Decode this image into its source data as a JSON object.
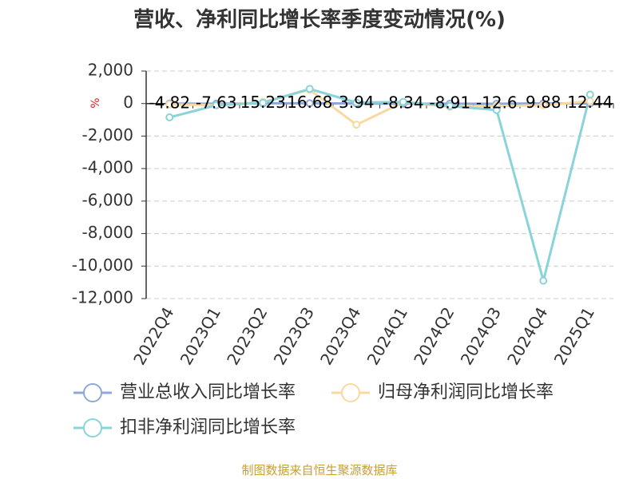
{
  "title": "营收、净利同比增长率季度变动情况(%)",
  "footer": "制图数据来自恒生聚源数据库",
  "chart_data": {
    "type": "line",
    "title": "营收、净利同比增长率季度变动情况(%)",
    "ylabel": "%",
    "xlabel": "",
    "categories": [
      "2022Q4",
      "2023Q1",
      "2023Q2",
      "2023Q3",
      "2023Q4",
      "2024Q1",
      "2024Q2",
      "2024Q3",
      "2024Q4",
      "2025Q1"
    ],
    "ylim": [
      -12000,
      2000
    ],
    "yticks": [
      2000,
      0,
      -2000,
      -4000,
      -6000,
      -8000,
      -10000,
      -12000
    ],
    "ytick_labels": [
      "2,000",
      "0",
      "-2,000",
      "-4,000",
      "-6,000",
      "-8,000",
      "-10,000",
      "-12,000"
    ],
    "grid": true,
    "legend_position": "bottom-left",
    "series": [
      {
        "name": "营业总收入同比增长率",
        "color": "#8fa8d8",
        "values": [
          -4.82,
          -7.63,
          15.23,
          16.68,
          3.94,
          -8.34,
          -8.91,
          -12.6,
          9.88,
          12.44
        ],
        "data_labels": [
          "-4.82",
          "-7.63",
          "15.23",
          "16.68",
          "3.94",
          "-8.34",
          "-8.91",
          "-12.6",
          "9.88",
          "12.44"
        ]
      },
      {
        "name": "归母净利润同比增长率",
        "color": "#fad9a0",
        "values": [
          -50,
          -100,
          100,
          850,
          -1300,
          80,
          -200,
          -150,
          -100,
          150
        ]
      },
      {
        "name": "扣非净利润同比增长率",
        "color": "#88d4d8",
        "values": [
          -850,
          -100,
          50,
          900,
          60,
          100,
          -150,
          -400,
          -10900,
          550
        ]
      }
    ]
  }
}
